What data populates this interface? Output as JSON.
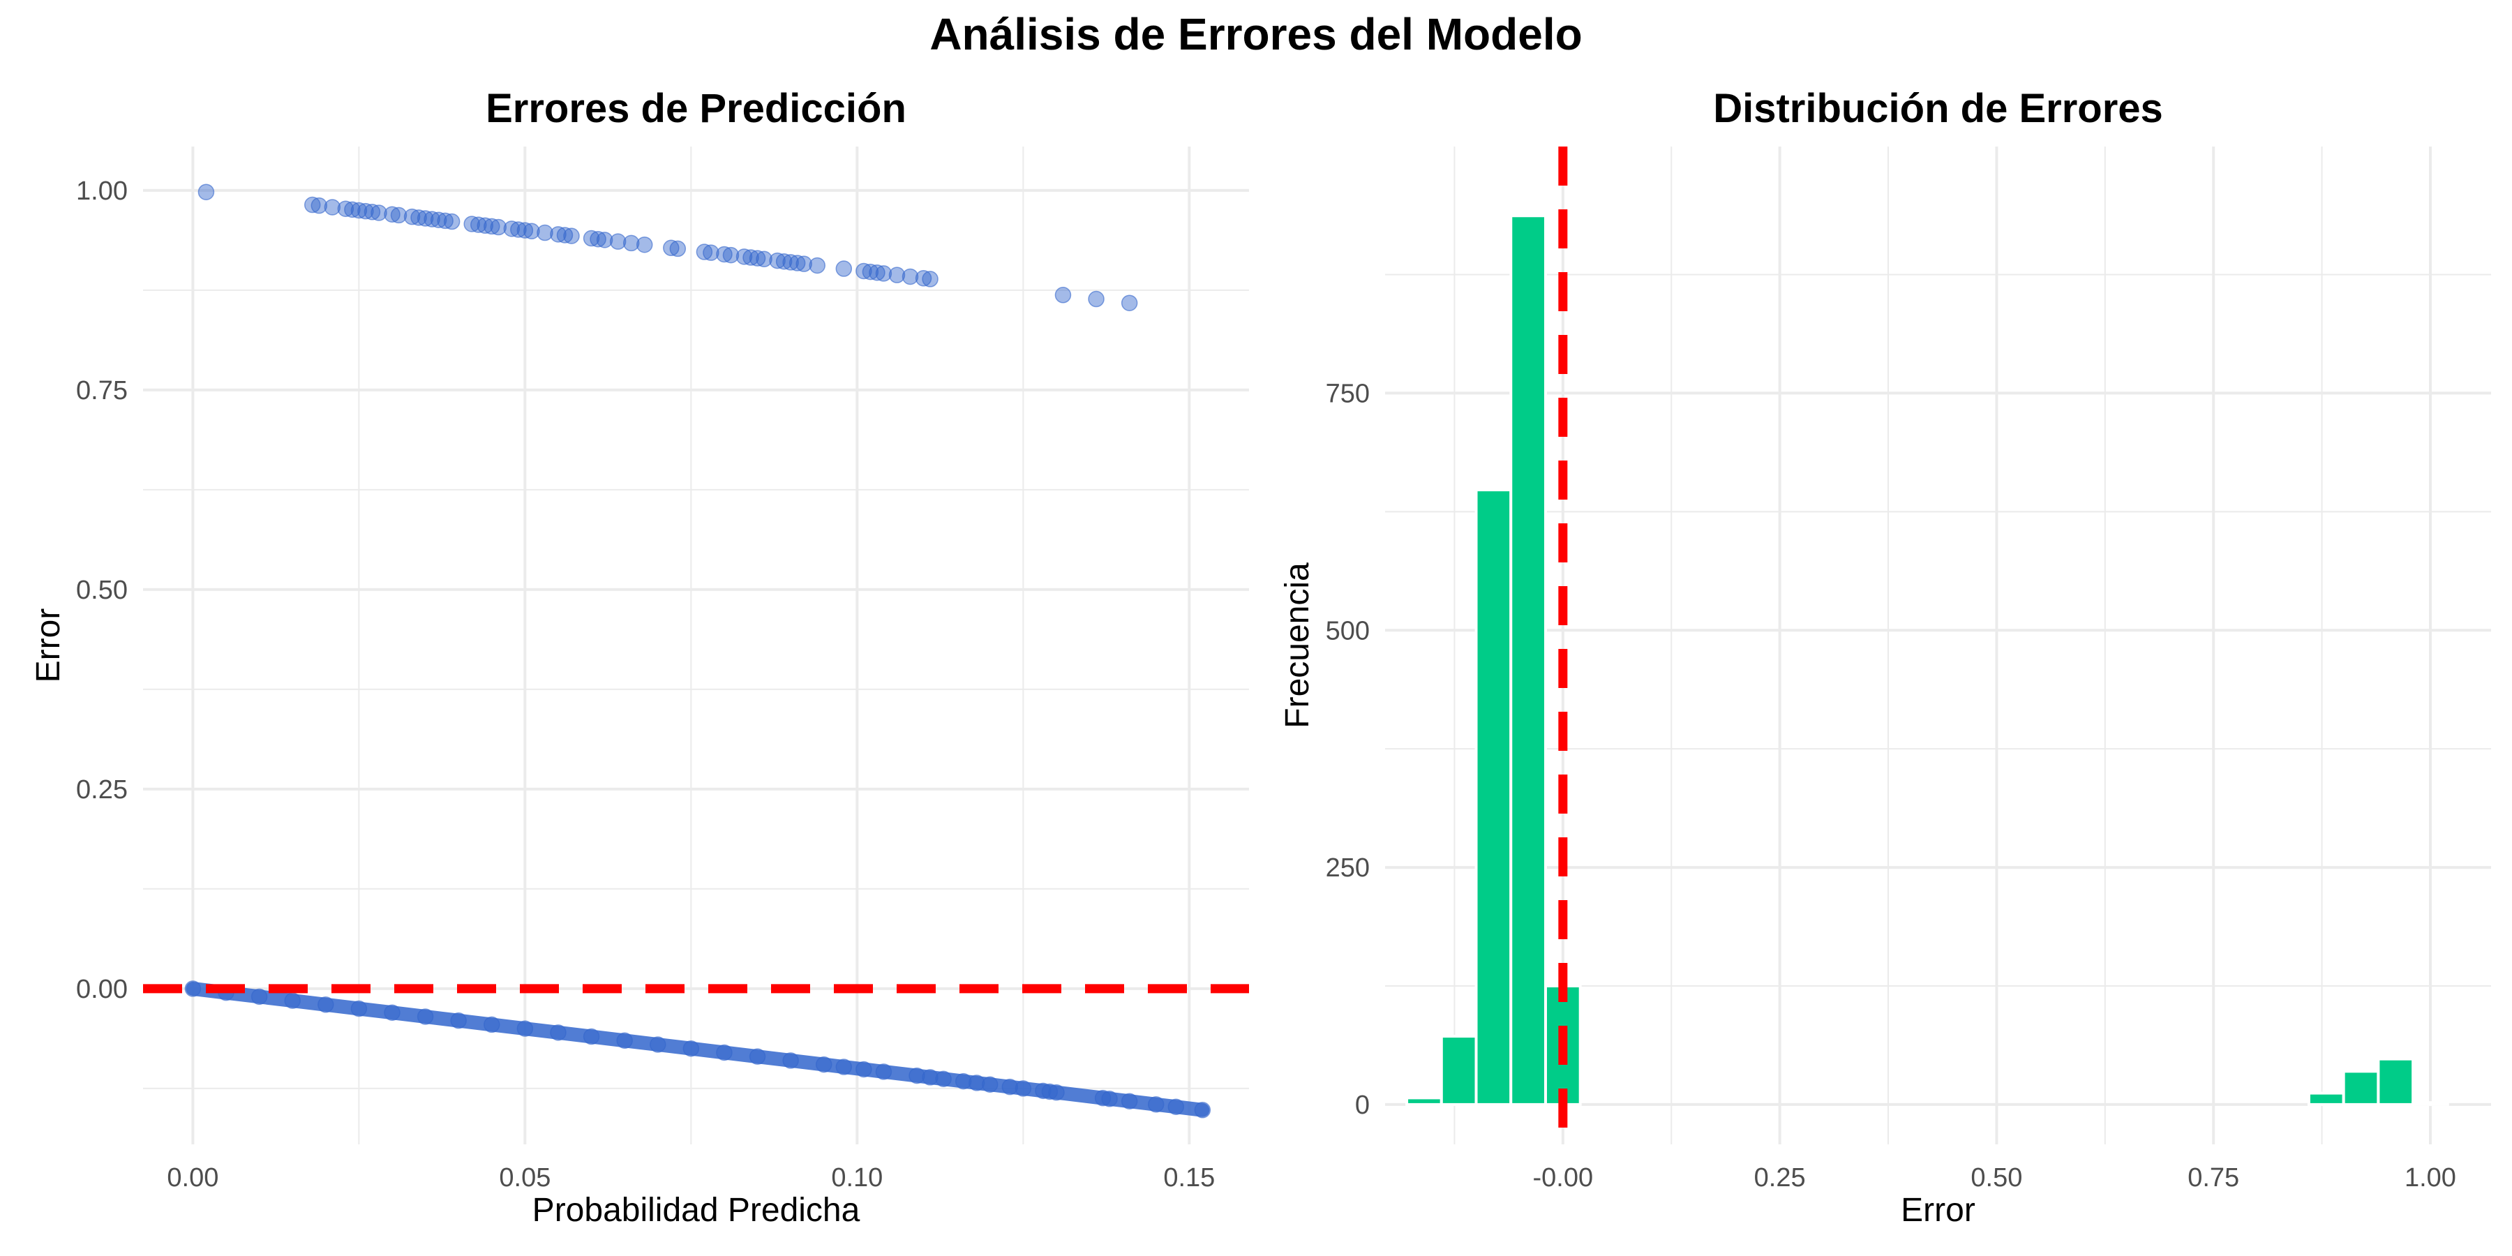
{
  "suptitle": "Análisis de Errores del Modelo",
  "colors": {
    "points": "#3366CC",
    "bars": "#00CC88",
    "reference_line": "#FF0000",
    "grid": "#EBEBEB"
  },
  "chart_data": [
    {
      "type": "scatter",
      "title": "Errores de Predicción",
      "xlabel": "Probabilidad Predicha",
      "ylabel": "Error",
      "xlim": [
        -0.0075,
        0.159
      ],
      "ylim": [
        -0.195,
        1.055
      ],
      "xticks": [
        0.0,
        0.05,
        0.1,
        0.15
      ],
      "xtick_labels": [
        "0.00",
        "0.05",
        "0.10",
        "0.15"
      ],
      "yticks": [
        0.0,
        0.25,
        0.5,
        0.75,
        1.0
      ],
      "ytick_labels": [
        "0.00",
        "0.25",
        "0.50",
        "0.75",
        "1.00"
      ],
      "reference_line": {
        "axis": "y",
        "value": 0.0,
        "style": "dashed"
      },
      "grid": true,
      "series": [
        {
          "x": [
            0.002,
            0.018,
            0.019,
            0.021,
            0.023,
            0.024,
            0.025,
            0.026,
            0.027,
            0.028,
            0.03,
            0.031,
            0.033,
            0.034,
            0.035,
            0.036,
            0.037,
            0.038,
            0.039,
            0.042,
            0.043,
            0.044,
            0.045,
            0.046,
            0.048,
            0.049,
            0.05,
            0.051,
            0.053,
            0.055,
            0.056,
            0.057,
            0.06,
            0.061,
            0.062,
            0.064,
            0.066,
            0.068,
            0.072,
            0.073,
            0.077,
            0.078,
            0.08,
            0.081,
            0.083,
            0.084,
            0.085,
            0.086,
            0.088,
            0.089,
            0.09,
            0.091,
            0.092,
            0.094,
            0.098,
            0.101,
            0.102,
            0.103,
            0.104,
            0.106,
            0.108,
            0.11,
            0.111,
            0.131,
            0.136,
            0.141
          ],
          "y": [
            0.998,
            0.982,
            0.981,
            0.979,
            0.977,
            0.976,
            0.975,
            0.974,
            0.973,
            0.972,
            0.97,
            0.969,
            0.967,
            0.966,
            0.965,
            0.964,
            0.963,
            0.962,
            0.961,
            0.958,
            0.957,
            0.956,
            0.955,
            0.954,
            0.952,
            0.951,
            0.95,
            0.949,
            0.947,
            0.945,
            0.944,
            0.943,
            0.94,
            0.939,
            0.938,
            0.936,
            0.934,
            0.932,
            0.928,
            0.927,
            0.923,
            0.922,
            0.92,
            0.919,
            0.917,
            0.916,
            0.915,
            0.914,
            0.912,
            0.911,
            0.91,
            0.909,
            0.908,
            0.906,
            0.902,
            0.899,
            0.898,
            0.897,
            0.896,
            0.894,
            0.892,
            0.89,
            0.889,
            0.869,
            0.864,
            0.859
          ]
        },
        {
          "x": [
            0.0,
            0.005,
            0.01,
            0.015,
            0.02,
            0.025,
            0.03,
            0.035,
            0.04,
            0.045,
            0.05,
            0.055,
            0.06,
            0.065,
            0.07,
            0.075,
            0.08,
            0.085,
            0.09,
            0.095,
            0.098,
            0.101,
            0.104,
            0.109,
            0.111,
            0.113,
            0.116,
            0.118,
            0.12,
            0.123,
            0.125,
            0.128,
            0.129,
            0.13,
            0.137,
            0.138,
            0.141,
            0.145,
            0.148,
            0.152
          ],
          "y": [
            0.0,
            -0.005,
            -0.01,
            -0.015,
            -0.02,
            -0.025,
            -0.03,
            -0.035,
            -0.04,
            -0.045,
            -0.05,
            -0.055,
            -0.06,
            -0.065,
            -0.07,
            -0.075,
            -0.08,
            -0.085,
            -0.09,
            -0.095,
            -0.098,
            -0.101,
            -0.104,
            -0.109,
            -0.111,
            -0.113,
            -0.116,
            -0.118,
            -0.12,
            -0.123,
            -0.125,
            -0.128,
            -0.129,
            -0.13,
            -0.137,
            -0.138,
            -0.141,
            -0.145,
            -0.148,
            -0.152
          ]
        }
      ]
    },
    {
      "type": "bar",
      "title": "Distribución de Errores",
      "xlabel": "Error",
      "ylabel": "Frecuencia",
      "xlim": [
        -0.205,
        1.07
      ],
      "ylim": [
        -42,
        1010
      ],
      "xticks": [
        0.0,
        0.25,
        0.5,
        0.75,
        1.0
      ],
      "xtick_labels": [
        "-0.00",
        "0.25",
        "0.50",
        "0.75",
        "1.00"
      ],
      "yticks": [
        0,
        250,
        500,
        750
      ],
      "ytick_labels": [
        "0",
        "250",
        "500",
        "750"
      ],
      "bin_width": 0.04,
      "reference_line": {
        "axis": "x",
        "value": 0.0,
        "style": "dashed"
      },
      "grid": true,
      "bins": [
        {
          "x": -0.16,
          "count": 7
        },
        {
          "x": -0.12,
          "count": 72
        },
        {
          "x": -0.08,
          "count": 648
        },
        {
          "x": -0.04,
          "count": 937
        },
        {
          "x": 0.0,
          "count": 125
        },
        {
          "x": 0.88,
          "count": 12
        },
        {
          "x": 0.92,
          "count": 35
        },
        {
          "x": 0.96,
          "count": 48
        },
        {
          "x": 1.0,
          "count": 2
        }
      ]
    }
  ]
}
